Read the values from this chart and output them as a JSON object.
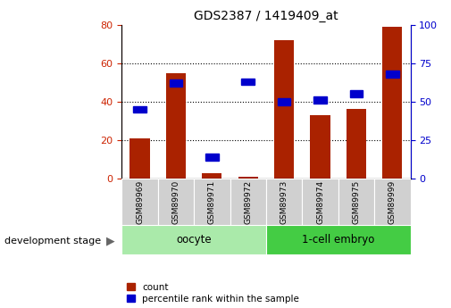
{
  "title": "GDS2387 / 1419409_at",
  "samples": [
    "GSM89969",
    "GSM89970",
    "GSM89971",
    "GSM89972",
    "GSM89973",
    "GSM89974",
    "GSM89975",
    "GSM89999"
  ],
  "counts": [
    21,
    55,
    3,
    1,
    72,
    33,
    36,
    79
  ],
  "percentile_ranks": [
    45,
    62,
    14,
    63,
    50,
    51,
    55,
    68
  ],
  "group_info": [
    {
      "label": "oocyte",
      "start": 0,
      "end": 3,
      "color": "#AAEAAA"
    },
    {
      "label": "1-cell embryo",
      "start": 4,
      "end": 7,
      "color": "#44CC44"
    }
  ],
  "bar_color": "#AA2200",
  "scatter_color": "#0000CC",
  "ylim_left": [
    0,
    80
  ],
  "ylim_right": [
    0,
    100
  ],
  "yticks_left": [
    0,
    20,
    40,
    60,
    80
  ],
  "yticks_right": [
    0,
    25,
    50,
    75,
    100
  ],
  "tick_label_color_left": "#CC2200",
  "tick_label_color_right": "#0000CC",
  "tick_fontsize": 8,
  "title_fontsize": 10,
  "legend_label_count": "count",
  "legend_label_pct": "percentile rank within the sample"
}
